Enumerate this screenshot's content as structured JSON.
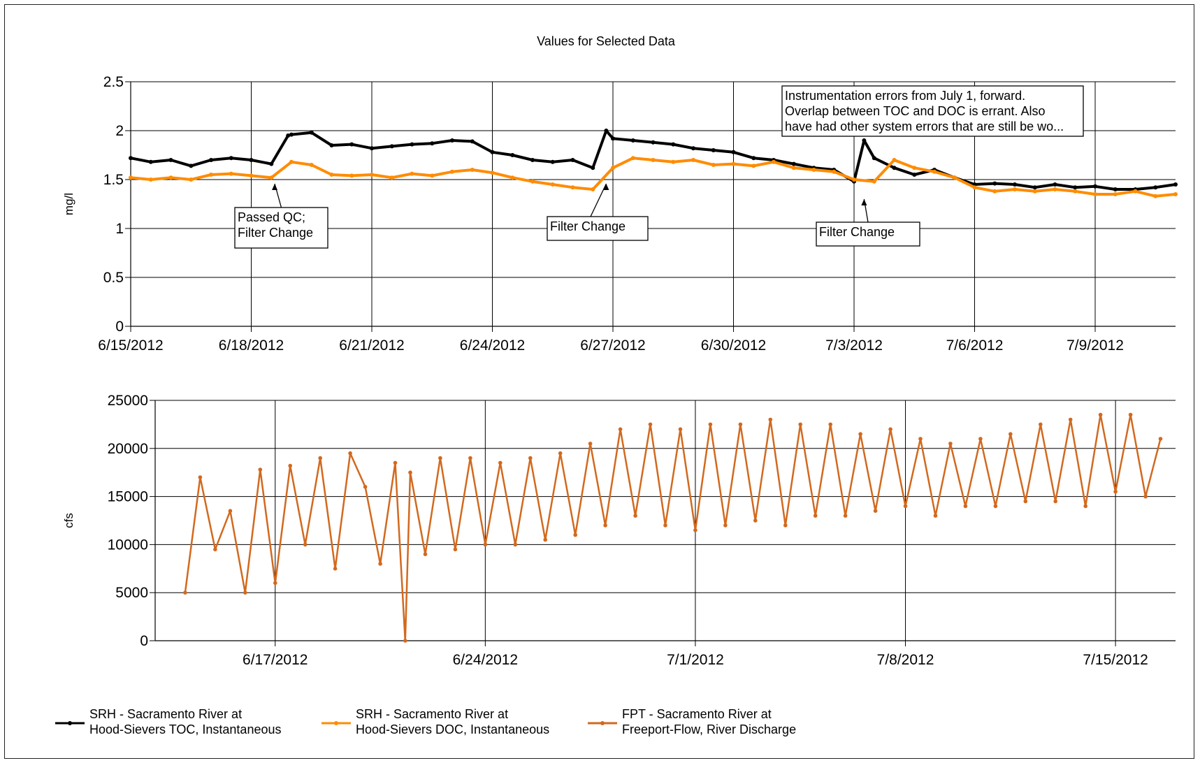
{
  "chart_title": "Values for Selected Data",
  "colors": {
    "toc": "#000000",
    "doc": "#ff8c00",
    "flow": "#d2691e"
  },
  "chart_data": [
    {
      "type": "line",
      "ylabel": "mg/l",
      "ylim": [
        0,
        2.5
      ],
      "yticks": [
        "0",
        "0.5",
        "1",
        "1.5",
        "2",
        "2.5"
      ],
      "xlim": [
        "2012-06-15",
        "2012-07-11"
      ],
      "xticks": [
        "6/15/2012",
        "6/18/2012",
        "6/21/2012",
        "6/24/2012",
        "6/27/2012",
        "6/30/2012",
        "7/3/2012",
        "7/6/2012",
        "7/9/2012"
      ],
      "grid": true,
      "series": [
        {
          "name": "SRH - Sacramento River at Hood-Sievers TOC, Instantaneous",
          "x": [
            "2012-06-15",
            "2012-06-15T12",
            "2012-06-16",
            "2012-06-16T12",
            "2012-06-17",
            "2012-06-17T12",
            "2012-06-18",
            "2012-06-18T12",
            "2012-06-18T22",
            "2012-06-19",
            "2012-06-19T12",
            "2012-06-20",
            "2012-06-20T12",
            "2012-06-21",
            "2012-06-21T12",
            "2012-06-22",
            "2012-06-22T12",
            "2012-06-23",
            "2012-06-23T12",
            "2012-06-24",
            "2012-06-24T12",
            "2012-06-25",
            "2012-06-25T12",
            "2012-06-26",
            "2012-06-26T12",
            "2012-06-26T20",
            "2012-06-27",
            "2012-06-27T12",
            "2012-06-28",
            "2012-06-28T12",
            "2012-06-29",
            "2012-06-29T12",
            "2012-06-30",
            "2012-06-30T12",
            "2012-07-01",
            "2012-07-01T12",
            "2012-07-02",
            "2012-07-02T12",
            "2012-07-03",
            "2012-07-03T06",
            "2012-07-03T12",
            "2012-07-04",
            "2012-07-04T12",
            "2012-07-05",
            "2012-07-05T12",
            "2012-07-06",
            "2012-07-06T12",
            "2012-07-07",
            "2012-07-07T12",
            "2012-07-08",
            "2012-07-08T12",
            "2012-07-09",
            "2012-07-09T12",
            "2012-07-10",
            "2012-07-10T12",
            "2012-07-11"
          ],
          "y": [
            1.72,
            1.68,
            1.7,
            1.64,
            1.7,
            1.72,
            1.7,
            1.66,
            1.95,
            1.96,
            1.98,
            1.85,
            1.86,
            1.82,
            1.84,
            1.86,
            1.87,
            1.9,
            1.89,
            1.78,
            1.75,
            1.7,
            1.68,
            1.7,
            1.62,
            2.0,
            1.92,
            1.9,
            1.88,
            1.86,
            1.82,
            1.8,
            1.78,
            1.72,
            1.7,
            1.66,
            1.62,
            1.6,
            1.48,
            1.9,
            1.72,
            1.62,
            1.55,
            1.6,
            1.52,
            1.45,
            1.46,
            1.45,
            1.42,
            1.45,
            1.42,
            1.43,
            1.4,
            1.4,
            1.42,
            1.45
          ]
        },
        {
          "name": "SRH - Sacramento River at Hood-Sievers DOC, Instantaneous",
          "x": [
            "2012-06-15",
            "2012-06-15T12",
            "2012-06-16",
            "2012-06-16T12",
            "2012-06-17",
            "2012-06-17T12",
            "2012-06-18",
            "2012-06-18T12",
            "2012-06-19",
            "2012-06-19T12",
            "2012-06-20",
            "2012-06-20T12",
            "2012-06-21",
            "2012-06-21T12",
            "2012-06-22",
            "2012-06-22T12",
            "2012-06-23",
            "2012-06-23T12",
            "2012-06-24",
            "2012-06-24T12",
            "2012-06-25",
            "2012-06-25T12",
            "2012-06-26",
            "2012-06-26T12",
            "2012-06-27",
            "2012-06-27T12",
            "2012-06-28",
            "2012-06-28T12",
            "2012-06-29",
            "2012-06-29T12",
            "2012-06-30",
            "2012-06-30T12",
            "2012-07-01",
            "2012-07-01T12",
            "2012-07-02",
            "2012-07-02T12",
            "2012-07-03",
            "2012-07-03T12",
            "2012-07-04",
            "2012-07-04T12",
            "2012-07-05",
            "2012-07-05T12",
            "2012-07-06",
            "2012-07-06T12",
            "2012-07-07",
            "2012-07-07T12",
            "2012-07-08",
            "2012-07-08T12",
            "2012-07-09",
            "2012-07-09T12",
            "2012-07-10",
            "2012-07-10T12",
            "2012-07-11"
          ],
          "y": [
            1.52,
            1.5,
            1.52,
            1.5,
            1.55,
            1.56,
            1.54,
            1.52,
            1.68,
            1.65,
            1.55,
            1.54,
            1.55,
            1.52,
            1.56,
            1.54,
            1.58,
            1.6,
            1.57,
            1.52,
            1.48,
            1.45,
            1.42,
            1.4,
            1.62,
            1.72,
            1.7,
            1.68,
            1.7,
            1.65,
            1.66,
            1.64,
            1.68,
            1.62,
            1.6,
            1.58,
            1.5,
            1.48,
            1.7,
            1.62,
            1.58,
            1.52,
            1.42,
            1.38,
            1.4,
            1.38,
            1.4,
            1.38,
            1.35,
            1.35,
            1.38,
            1.33,
            1.35
          ]
        }
      ],
      "annotations": [
        {
          "text": "Passed QC;\nFilter Change",
          "x": "2012-06-18T14"
        },
        {
          "text": "Filter Change",
          "x": "2012-06-26T20"
        },
        {
          "text": "Filter Change",
          "x": "2012-07-03T06"
        },
        {
          "text": "Instrumentation errors from July 1, forward.\nOverlap between TOC and DOC is errant. Also\nhave had other system errors that are still be wo..."
        }
      ]
    },
    {
      "type": "line",
      "ylabel": "cfs",
      "ylim": [
        0,
        25000
      ],
      "yticks": [
        "0",
        "5000",
        "10000",
        "15000",
        "20000",
        "25000"
      ],
      "xlim": [
        "2012-06-13",
        "2012-07-17"
      ],
      "xticks": [
        "6/17/2012",
        "6/24/2012",
        "7/1/2012",
        "7/8/2012",
        "7/15/2012"
      ],
      "grid": true,
      "series": [
        {
          "name": "FPT - Sacramento River at Freeport-Flow, River Discharge",
          "x": [
            "2012-06-14",
            "2012-06-14T12",
            "2012-06-15",
            "2012-06-15T12",
            "2012-06-16",
            "2012-06-16T12",
            "2012-06-17",
            "2012-06-17T12",
            "2012-06-18",
            "2012-06-18T12",
            "2012-06-19",
            "2012-06-19T12",
            "2012-06-20",
            "2012-06-20T12",
            "2012-06-21",
            "2012-06-21T08",
            "2012-06-21T12",
            "2012-06-22",
            "2012-06-22T12",
            "2012-06-23",
            "2012-06-23T12",
            "2012-06-24",
            "2012-06-24T12",
            "2012-06-25",
            "2012-06-25T12",
            "2012-06-26",
            "2012-06-26T12",
            "2012-06-27",
            "2012-06-27T12",
            "2012-06-28",
            "2012-06-28T12",
            "2012-06-29",
            "2012-06-29T12",
            "2012-06-30",
            "2012-06-30T12",
            "2012-07-01",
            "2012-07-01T12",
            "2012-07-02",
            "2012-07-02T12",
            "2012-07-03",
            "2012-07-03T12",
            "2012-07-04",
            "2012-07-04T12",
            "2012-07-05",
            "2012-07-05T12",
            "2012-07-06",
            "2012-07-06T12",
            "2012-07-07",
            "2012-07-07T12",
            "2012-07-08",
            "2012-07-08T12",
            "2012-07-09",
            "2012-07-09T12",
            "2012-07-10",
            "2012-07-10T12",
            "2012-07-11",
            "2012-07-11T12",
            "2012-07-12",
            "2012-07-12T12",
            "2012-07-13",
            "2012-07-13T12",
            "2012-07-14",
            "2012-07-14T12",
            "2012-07-15",
            "2012-07-15T12",
            "2012-07-16",
            "2012-07-16T12"
          ],
          "y": [
            5000,
            17000,
            9500,
            13500,
            5000,
            17800,
            6000,
            18200,
            10000,
            19000,
            7500,
            19500,
            16000,
            8000,
            18500,
            0,
            17500,
            9000,
            19000,
            9500,
            19000,
            10000,
            18500,
            10000,
            19000,
            10500,
            19500,
            11000,
            20500,
            12000,
            22000,
            13000,
            22500,
            12000,
            22000,
            11500,
            22500,
            12000,
            22500,
            12500,
            23000,
            12000,
            22500,
            13000,
            22500,
            13000,
            21500,
            13500,
            22000,
            14000,
            21000,
            13000,
            20500,
            14000,
            21000,
            14000,
            21500,
            14500,
            22500,
            14500,
            23000,
            14000,
            23500,
            15500,
            23500,
            15000,
            21000
          ]
        }
      ]
    }
  ],
  "legend": [
    {
      "line1": "SRH - Sacramento River at",
      "line2": "Hood-Sievers TOC, Instantaneous"
    },
    {
      "line1": "SRH - Sacramento River at",
      "line2": "Hood-Sievers DOC, Instantaneous"
    },
    {
      "line1": "FPT - Sacramento River at",
      "line2": "Freeport-Flow, River Discharge"
    }
  ]
}
